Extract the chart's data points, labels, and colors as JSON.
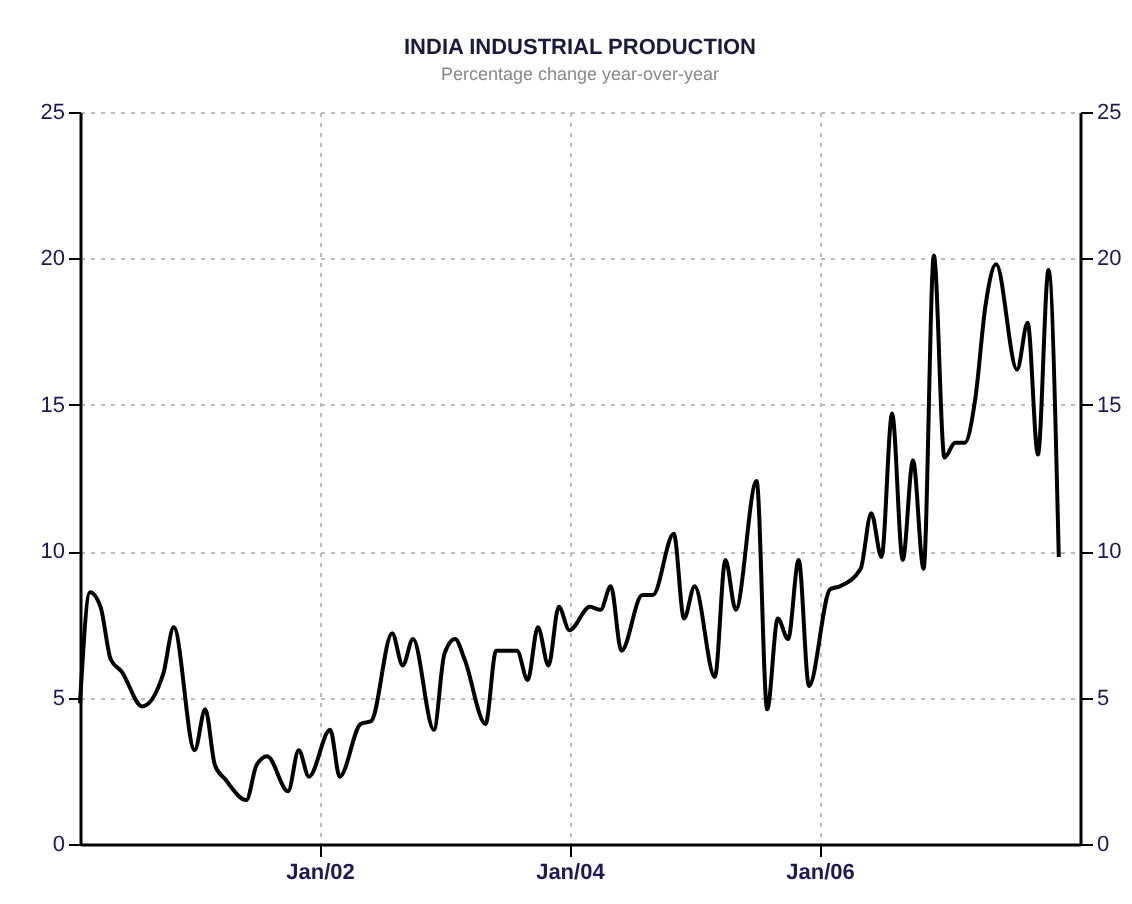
{
  "chart_data": {
    "type": "line",
    "title": "INDIA INDUSTRIAL PRODUCTION",
    "subtitle": "Percentage change year-over-year",
    "x": [
      "2000-02",
      "2000-03",
      "2000-04",
      "2000-05",
      "2000-06",
      "2000-08",
      "2000-10",
      "2000-11",
      "2001-01",
      "2001-02",
      "2001-03",
      "2001-04",
      "2001-06",
      "2001-07",
      "2001-08",
      "2001-10",
      "2001-11",
      "2001-12",
      "2002-02",
      "2002-03",
      "2002-05",
      "2002-06",
      "2002-08",
      "2002-09",
      "2002-10",
      "2002-12",
      "2003-01",
      "2003-02",
      "2003-03",
      "2003-05",
      "2003-06",
      "2003-08",
      "2003-09",
      "2003-10",
      "2003-11",
      "2003-12",
      "2004-01",
      "2004-03",
      "2004-04",
      "2004-05",
      "2004-06",
      "2004-08",
      "2004-09",
      "2004-11",
      "2004-12",
      "2005-01",
      "2005-03",
      "2005-04",
      "2005-05",
      "2005-07",
      "2005-08",
      "2005-09",
      "2005-10",
      "2005-11",
      "2005-12",
      "2006-02",
      "2006-03",
      "2006-05",
      "2006-06",
      "2006-07",
      "2006-08",
      "2006-09",
      "2006-10",
      "2006-11",
      "2006-12",
      "2007-01",
      "2007-02",
      "2007-03",
      "2007-04",
      "2007-05",
      "2007-06",
      "2007-08",
      "2007-09",
      "2007-10",
      "2007-11",
      "2007-12"
    ],
    "series": [
      {
        "color": "#000000",
        "values": [
          4.8,
          8.6,
          8.1,
          6.3,
          5.9,
          4.7,
          5.8,
          7.4,
          3.2,
          4.6,
          2.7,
          2.2,
          1.5,
          2.7,
          3.0,
          1.8,
          3.2,
          2.3,
          3.9,
          2.3,
          4.1,
          4.2,
          7.2,
          6.1,
          7.0,
          3.9,
          6.5,
          7.0,
          6.3,
          4.1,
          6.6,
          6.6,
          5.6,
          7.4,
          6.1,
          8.1,
          7.3,
          8.1,
          8.0,
          8.8,
          6.6,
          8.5,
          8.5,
          10.6,
          7.7,
          8.8,
          5.7,
          9.7,
          8.0,
          12.4,
          4.6,
          7.7,
          7.0,
          9.7,
          5.4,
          8.7,
          8.8,
          9.4,
          11.3,
          9.8,
          14.7,
          9.7,
          13.1,
          9.4,
          20.1,
          13.2,
          13.7,
          13.7,
          15.2,
          18.4,
          19.8,
          16.2,
          17.8,
          13.3,
          19.6,
          9.8
        ]
      }
    ],
    "xlim": [
      "2000-02",
      "2008-02"
    ],
    "xticks": [
      {
        "value": "2002-01",
        "label": "Jan/02"
      },
      {
        "value": "2004-01",
        "label": "Jan/04"
      },
      {
        "value": "2006-01",
        "label": "Jan/06"
      }
    ],
    "ylim": [
      0,
      25
    ],
    "yticks": [
      0,
      5,
      10,
      15,
      20,
      25
    ],
    "y2lim": [
      0,
      25
    ],
    "y2ticks": [
      0,
      5,
      10,
      15,
      20,
      25
    ],
    "grid": true,
    "marker": "none",
    "line_style": "solid"
  }
}
